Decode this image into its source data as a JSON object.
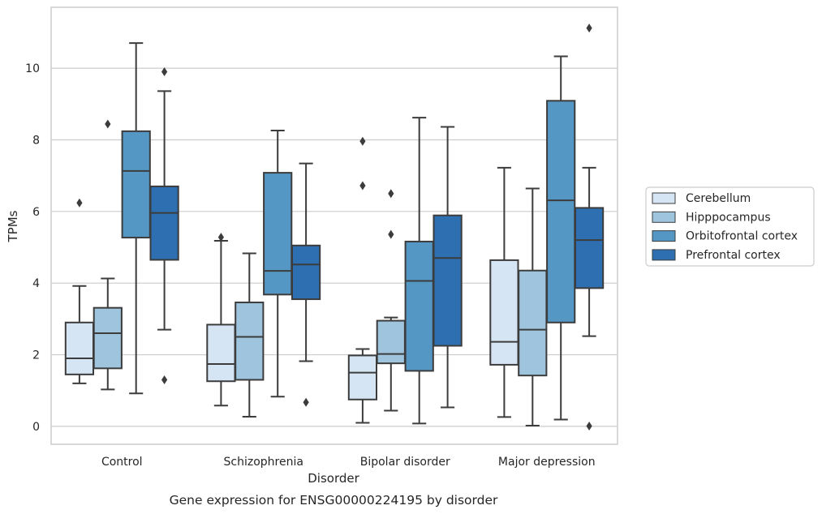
{
  "chart_data": {
    "type": "box",
    "caption": "Gene expression for ENSG00000224195 by disorder",
    "xlabel": "Disorder",
    "ylabel": "TPMs",
    "ylim": [
      -0.5,
      11.7
    ],
    "yticks": [
      0,
      2,
      4,
      6,
      8,
      10
    ],
    "grid": "y",
    "legend_position": "right",
    "categories": [
      "Control",
      "Schizophrenia",
      "Bipolar disorder",
      "Major depression"
    ],
    "series": [
      {
        "name": "Cerebellum",
        "color": "#d6e5f3",
        "boxes": [
          {
            "whislo": 1.2,
            "q1": 1.45,
            "med": 1.9,
            "q3": 2.9,
            "whishi": 3.92,
            "fliers": [
              6.24
            ]
          },
          {
            "whislo": 0.58,
            "q1": 1.26,
            "med": 1.74,
            "q3": 2.84,
            "whishi": 5.18,
            "fliers": [
              5.28
            ]
          },
          {
            "whislo": 0.1,
            "q1": 0.75,
            "med": 1.5,
            "q3": 1.98,
            "whishi": 2.16,
            "fliers": [
              6.72,
              7.96
            ]
          },
          {
            "whislo": 0.26,
            "q1": 1.72,
            "med": 2.36,
            "q3": 4.64,
            "whishi": 7.22,
            "fliers": []
          }
        ]
      },
      {
        "name": "Hipppocampus",
        "color": "#9ec4de",
        "boxes": [
          {
            "whislo": 1.03,
            "q1": 1.62,
            "med": 2.6,
            "q3": 3.31,
            "whishi": 4.13,
            "fliers": [
              8.44
            ]
          },
          {
            "whislo": 0.27,
            "q1": 1.3,
            "med": 2.5,
            "q3": 3.46,
            "whishi": 4.83,
            "fliers": []
          },
          {
            "whislo": 0.44,
            "q1": 1.76,
            "med": 2.02,
            "q3": 2.95,
            "whishi": 3.04,
            "fliers": [
              5.36,
              6.5
            ]
          },
          {
            "whislo": 0.02,
            "q1": 1.42,
            "med": 2.7,
            "q3": 4.35,
            "whishi": 6.64,
            "fliers": []
          }
        ]
      },
      {
        "name": "Orbitofrontal cortex",
        "color": "#5497c5",
        "boxes": [
          {
            "whislo": 0.92,
            "q1": 5.27,
            "med": 7.13,
            "q3": 8.24,
            "whishi": 10.7,
            "fliers": []
          },
          {
            "whislo": 0.83,
            "q1": 3.68,
            "med": 4.34,
            "q3": 7.08,
            "whishi": 8.26,
            "fliers": []
          },
          {
            "whislo": 0.08,
            "q1": 1.55,
            "med": 4.06,
            "q3": 5.16,
            "whishi": 8.62,
            "fliers": []
          },
          {
            "whislo": 0.19,
            "q1": 2.9,
            "med": 6.31,
            "q3": 9.09,
            "whishi": 10.33,
            "fliers": []
          }
        ]
      },
      {
        "name": "Prefrontal cortex",
        "color": "#2d6fb1",
        "boxes": [
          {
            "whislo": 2.7,
            "q1": 4.65,
            "med": 5.96,
            "q3": 6.7,
            "whishi": 9.36,
            "fliers": [
              1.3,
              9.9
            ]
          },
          {
            "whislo": 1.82,
            "q1": 3.55,
            "med": 4.52,
            "q3": 5.05,
            "whishi": 7.34,
            "fliers": [
              0.67
            ]
          },
          {
            "whislo": 0.53,
            "q1": 2.25,
            "med": 4.7,
            "q3": 5.89,
            "whishi": 8.36,
            "fliers": []
          },
          {
            "whislo": 2.52,
            "q1": 3.86,
            "med": 5.2,
            "q3": 6.1,
            "whishi": 7.22,
            "fliers": [
              0.01,
              11.12
            ]
          }
        ]
      }
    ]
  }
}
